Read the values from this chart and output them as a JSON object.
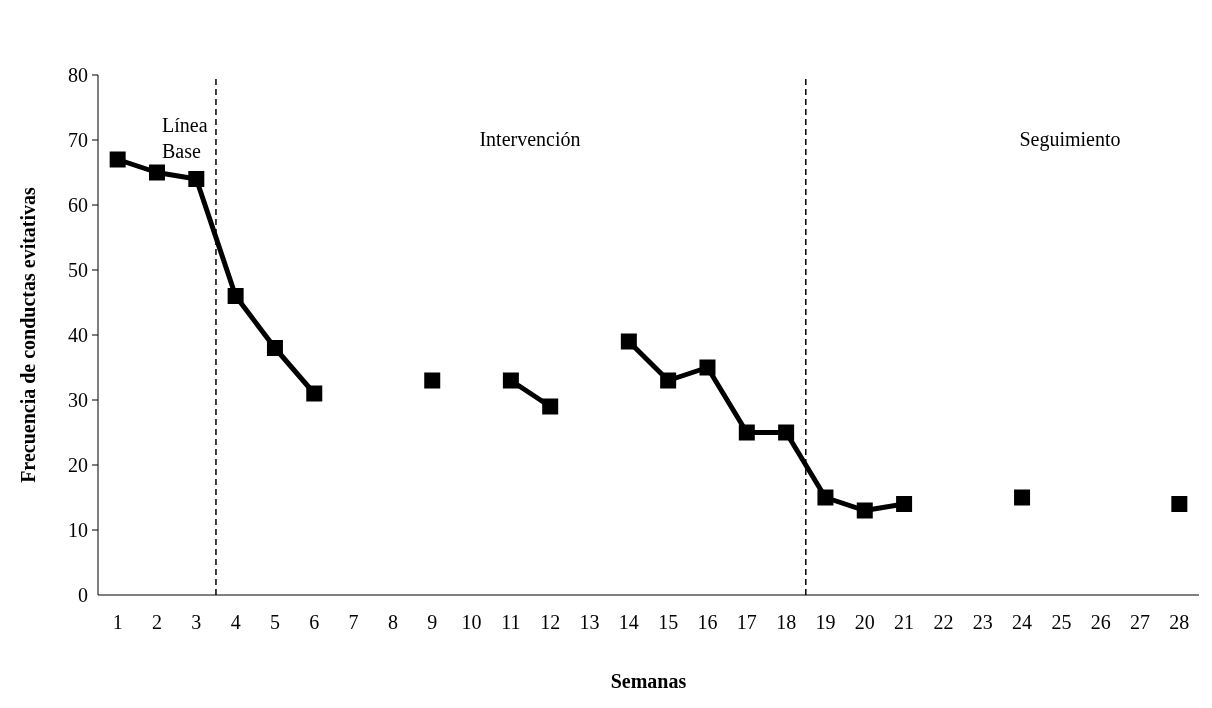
{
  "chart_data": {
    "type": "line",
    "xlabel": "Semanas",
    "ylabel": "Frecuencia de conductas evitativas",
    "x": [
      1,
      2,
      3,
      4,
      5,
      6,
      7,
      8,
      9,
      10,
      11,
      12,
      13,
      14,
      15,
      16,
      17,
      18,
      19,
      20,
      21,
      22,
      23,
      24,
      25,
      26,
      27,
      28
    ],
    "series": [
      {
        "color": "#000000",
        "values": [
          67,
          65,
          64,
          46,
          38,
          31,
          null,
          null,
          33,
          null,
          33,
          29,
          null,
          39,
          33,
          35,
          25,
          25,
          15,
          13,
          14,
          null,
          null,
          15,
          null,
          null,
          null,
          14
        ]
      }
    ],
    "xlim": [
      0.5,
      28.5
    ],
    "xticks": [
      1,
      2,
      3,
      4,
      5,
      6,
      7,
      8,
      9,
      10,
      11,
      12,
      13,
      14,
      15,
      16,
      17,
      18,
      19,
      20,
      21,
      22,
      23,
      24,
      25,
      26,
      27,
      28
    ],
    "ylim": [
      0,
      80
    ],
    "yticks": [
      0,
      10,
      20,
      30,
      40,
      50,
      60,
      70,
      80
    ],
    "ref_lines": [
      {
        "axis": "x",
        "value": 3.5,
        "line_style": "dashed"
      },
      {
        "axis": "x",
        "value": 18.5,
        "line_style": "dashed"
      }
    ],
    "annotations": [
      "Línea Base",
      "Intervención",
      "Seguimiento"
    ],
    "marker": "square",
    "line_style": "solid",
    "grid": false,
    "legend": false
  }
}
